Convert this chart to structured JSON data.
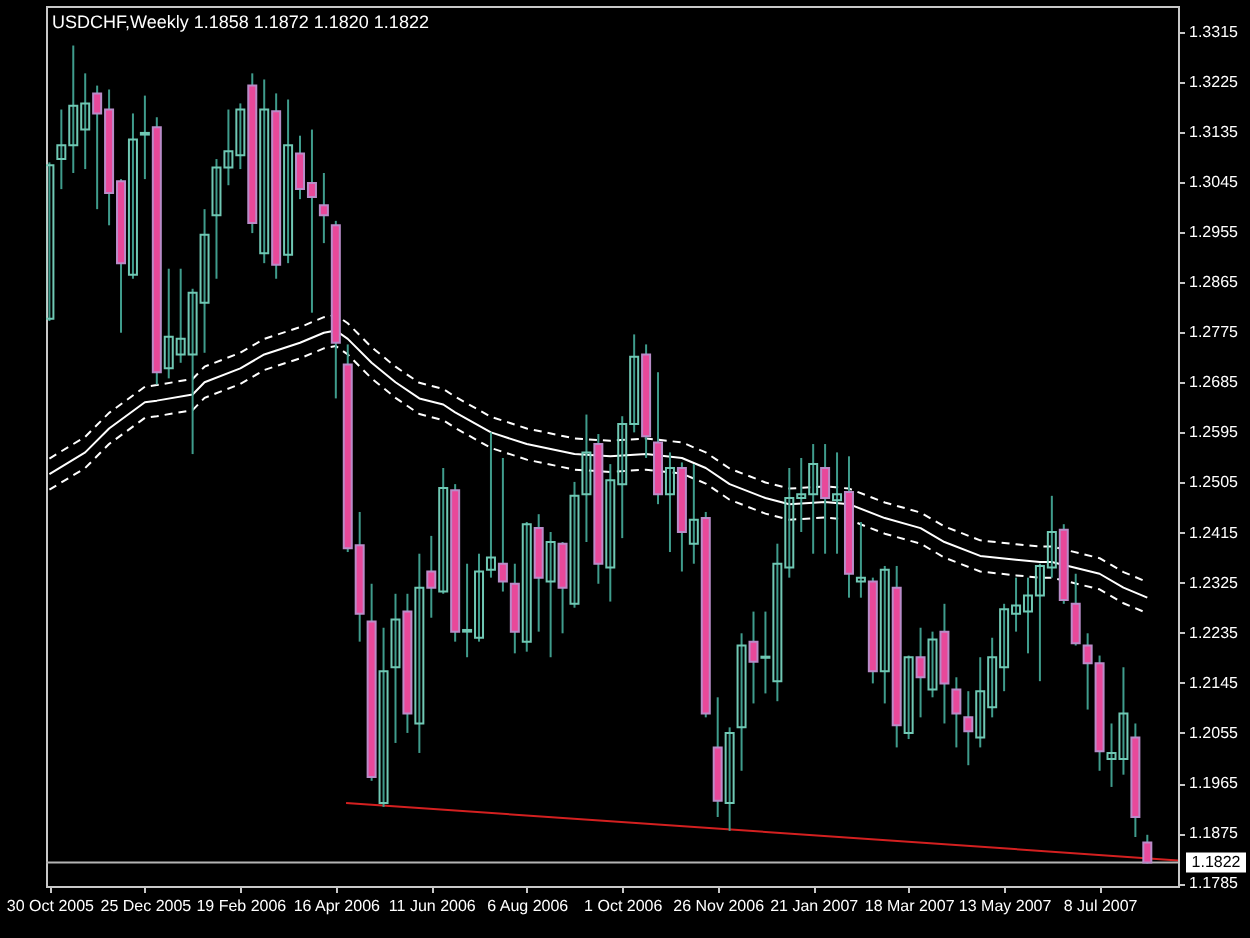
{
  "chart_data": {
    "type": "candlestick",
    "title": "USDCHF,Weekly 1.1858 1.1872 1.1820 1.1822",
    "x": [
      "2005-10-30",
      "2005-11-06",
      "2005-11-13",
      "2005-11-20",
      "2005-11-27",
      "2005-12-04",
      "2005-12-11",
      "2005-12-18",
      "2005-12-25",
      "2006-01-01",
      "2006-01-08",
      "2006-01-15",
      "2006-01-22",
      "2006-01-29",
      "2006-02-05",
      "2006-02-12",
      "2006-02-19",
      "2006-02-26",
      "2006-03-05",
      "2006-03-12",
      "2006-03-19",
      "2006-03-26",
      "2006-04-02",
      "2006-04-09",
      "2006-04-16",
      "2006-04-23",
      "2006-04-30",
      "2006-05-07",
      "2006-05-14",
      "2006-05-21",
      "2006-05-28",
      "2006-06-04",
      "2006-06-11",
      "2006-06-18",
      "2006-06-25",
      "2006-07-02",
      "2006-07-09",
      "2006-07-16",
      "2006-07-23",
      "2006-07-30",
      "2006-08-06",
      "2006-08-13",
      "2006-08-20",
      "2006-08-27",
      "2006-09-03",
      "2006-09-10",
      "2006-09-17",
      "2006-09-24",
      "2006-10-01",
      "2006-10-08",
      "2006-10-15",
      "2006-10-22",
      "2006-10-29",
      "2006-11-05",
      "2006-11-12",
      "2006-11-19",
      "2006-11-26",
      "2006-12-03",
      "2006-12-10",
      "2006-12-17",
      "2006-12-24",
      "2006-12-31",
      "2007-01-07",
      "2007-01-14",
      "2007-01-21",
      "2007-01-28",
      "2007-02-04",
      "2007-02-11",
      "2007-02-18",
      "2007-02-25",
      "2007-03-04",
      "2007-03-11",
      "2007-03-18",
      "2007-03-25",
      "2007-04-01",
      "2007-04-08",
      "2007-04-15",
      "2007-04-22",
      "2007-04-29",
      "2007-05-06",
      "2007-05-13",
      "2007-05-20",
      "2007-05-27",
      "2007-06-03",
      "2007-06-10",
      "2007-06-17",
      "2007-06-24",
      "2007-07-01",
      "2007-07-08",
      "2007-07-15",
      "2007-07-22",
      "2007-07-29",
      "2007-08-05"
    ],
    "ohlc": [
      [
        1.2799,
        1.308,
        1.2795,
        1.3075
      ],
      [
        1.3086,
        1.3175,
        1.3032,
        1.3111
      ],
      [
        1.3111,
        1.329,
        1.3061,
        1.3182
      ],
      [
        1.3139,
        1.324,
        1.3068,
        1.3186
      ],
      [
        1.3204,
        1.3218,
        1.2996,
        1.3168
      ],
      [
        1.3175,
        1.3211,
        1.2967,
        1.3025
      ],
      [
        1.3046,
        1.305,
        1.2774,
        1.2899
      ],
      [
        1.2878,
        1.3168,
        1.2871,
        1.3121
      ],
      [
        1.313,
        1.32,
        1.305,
        1.3133
      ],
      [
        1.3143,
        1.3161,
        1.2681,
        1.2703
      ],
      [
        1.271,
        1.2889,
        1.2692,
        1.2767
      ],
      [
        1.2735,
        1.2889,
        1.272,
        1.2763
      ],
      [
        1.2735,
        1.2853,
        1.2556,
        1.2846
      ],
      [
        1.2828,
        1.2996,
        1.2738,
        1.295
      ],
      [
        1.2985,
        1.3086,
        1.2871,
        1.3071
      ],
      [
        1.3071,
        1.3175,
        1.3039,
        1.31
      ],
      [
        1.3093,
        1.3186,
        1.3068,
        1.3175
      ],
      [
        1.3218,
        1.324,
        1.2953,
        1.2971
      ],
      [
        1.2917,
        1.3229,
        1.2899,
        1.3175
      ],
      [
        1.3172,
        1.3204,
        1.2871,
        1.2896
      ],
      [
        1.2914,
        1.3193,
        1.2899,
        1.3111
      ],
      [
        1.3096,
        1.3128,
        1.3014,
        1.3032
      ],
      [
        1.3043,
        1.3139,
        1.281,
        1.3018
      ],
      [
        1.3003,
        1.3061,
        1.2935,
        1.2985
      ],
      [
        1.2967,
        1.2975,
        1.2656,
        1.2756
      ],
      [
        1.2717,
        1.2753,
        1.238,
        1.2387
      ],
      [
        1.2392,
        1.2452,
        1.2219,
        1.2269
      ],
      [
        1.2255,
        1.2323,
        1.1969,
        1.1976
      ],
      [
        1.1929,
        1.2244,
        1.1922,
        1.2166
      ],
      [
        1.2173,
        1.2305,
        1.2037,
        1.2259
      ],
      [
        1.2273,
        1.2305,
        1.2055,
        1.209
      ],
      [
        1.2072,
        1.2377,
        1.2019,
        1.2316
      ],
      [
        1.2345,
        1.2409,
        1.2262,
        1.2316
      ],
      [
        1.2309,
        1.2531,
        1.2305,
        1.2495
      ],
      [
        1.2491,
        1.2502,
        1.2219,
        1.2237
      ],
      [
        1.2237,
        1.2359,
        1.2191,
        1.224
      ],
      [
        1.2226,
        1.2377,
        1.2219,
        1.2345
      ],
      [
        1.2348,
        1.2595,
        1.2334,
        1.237
      ],
      [
        1.2359,
        1.2549,
        1.2309,
        1.2327
      ],
      [
        1.2323,
        1.2359,
        1.2198,
        1.2237
      ],
      [
        1.2219,
        1.2434,
        1.2201,
        1.243
      ],
      [
        1.2423,
        1.2448,
        1.2237,
        1.2334
      ],
      [
        1.2327,
        1.2416,
        1.2191,
        1.2398
      ],
      [
        1.2395,
        1.2398,
        1.2234,
        1.2316
      ],
      [
        1.2287,
        1.2506,
        1.228,
        1.2481
      ],
      [
        1.2484,
        1.2627,
        1.2398,
        1.2559
      ],
      [
        1.2574,
        1.2592,
        1.2323,
        1.2359
      ],
      [
        1.2352,
        1.2538,
        1.2291,
        1.2509
      ],
      [
        1.2502,
        1.2624,
        1.2405,
        1.261
      ],
      [
        1.261,
        1.2771,
        1.2595,
        1.2731
      ],
      [
        1.2735,
        1.2753,
        1.2549,
        1.2588
      ],
      [
        1.2577,
        1.2703,
        1.2466,
        1.2484
      ],
      [
        1.2484,
        1.2559,
        1.238,
        1.2531
      ],
      [
        1.2531,
        1.2541,
        1.2345,
        1.2416
      ],
      [
        1.2395,
        1.2538,
        1.2359,
        1.2438
      ],
      [
        1.2441,
        1.2452,
        1.2083,
        1.209
      ],
      [
        1.2029,
        1.2119,
        1.1904,
        1.1933
      ],
      [
        1.1929,
        1.2065,
        1.1879,
        1.2055
      ],
      [
        1.2065,
        1.2234,
        1.1987,
        1.2212
      ],
      [
        1.2219,
        1.2273,
        1.2108,
        1.2183
      ],
      [
        1.219,
        1.2273,
        1.2126,
        1.2192
      ],
      [
        1.2148,
        1.2395,
        1.2112,
        1.2359
      ],
      [
        1.2352,
        1.2531,
        1.2334,
        1.2477
      ],
      [
        1.2477,
        1.2549,
        1.2416,
        1.2484
      ],
      [
        1.2484,
        1.2574,
        1.2377,
        1.2538
      ],
      [
        1.2531,
        1.2574,
        1.2377,
        1.2477
      ],
      [
        1.2473,
        1.2559,
        1.2377,
        1.2484
      ],
      [
        1.2488,
        1.2552,
        1.2298,
        1.2341
      ],
      [
        1.2327,
        1.2434,
        1.2298,
        1.2334
      ],
      [
        1.2327,
        1.2334,
        1.2144,
        1.2166
      ],
      [
        1.2166,
        1.2355,
        1.2108,
        1.2348
      ],
      [
        1.2316,
        1.2355,
        1.2029,
        1.2069
      ],
      [
        1.2055,
        1.2194,
        1.2044,
        1.2191
      ],
      [
        1.2191,
        1.2244,
        1.2083,
        1.2155
      ],
      [
        1.2133,
        1.2237,
        1.2119,
        1.2223
      ],
      [
        1.2237,
        1.2287,
        1.2072,
        1.2144
      ],
      [
        1.2133,
        1.2155,
        1.2029,
        1.209
      ],
      [
        1.2083,
        1.213,
        1.1997,
        1.2058
      ],
      [
        1.2047,
        1.2191,
        1.2029,
        1.213
      ],
      [
        1.2101,
        1.2226,
        1.2083,
        1.2191
      ],
      [
        1.2173,
        1.2287,
        1.213,
        1.2277
      ],
      [
        1.2269,
        1.2334,
        1.2237,
        1.2284
      ],
      [
        1.2273,
        1.2334,
        1.2198,
        1.2302
      ],
      [
        1.2302,
        1.2359,
        1.2148,
        1.2355
      ],
      [
        1.2352,
        1.2481,
        1.2334,
        1.2416
      ],
      [
        1.242,
        1.243,
        1.2287,
        1.2294
      ],
      [
        1.2287,
        1.2341,
        1.2212,
        1.2216
      ],
      [
        1.2212,
        1.2234,
        1.2097,
        1.218
      ],
      [
        1.218,
        1.2194,
        1.1987,
        1.2022
      ],
      [
        1.2008,
        1.2072,
        1.1958,
        1.2019
      ],
      [
        1.2008,
        1.2173,
        1.198,
        1.209
      ],
      [
        1.2047,
        1.2072,
        1.1868,
        1.1904
      ],
      [
        1.1858,
        1.1872,
        1.182,
        1.1822
      ]
    ],
    "series": [
      {
        "type": "line",
        "color": "#ffffff",
        "x": [
          "2005-10-30",
          "2005-11-20",
          "2005-12-04",
          "2005-12-25",
          "2006-01-01",
          "2006-01-22",
          "2006-01-29",
          "2006-02-19",
          "2006-03-05",
          "2006-03-26",
          "2006-04-09",
          "2006-04-16",
          "2006-04-23",
          "2006-05-07",
          "2006-05-21",
          "2006-06-04",
          "2006-06-18",
          "2006-06-25",
          "2006-07-16",
          "2006-08-06",
          "2006-09-03",
          "2006-09-24",
          "2006-10-15",
          "2006-11-05",
          "2006-11-19",
          "2006-12-03",
          "2006-12-24",
          "2007-01-07",
          "2007-01-28",
          "2007-02-11",
          "2007-03-04",
          "2007-03-25",
          "2007-04-08",
          "2007-04-29",
          "2007-05-20",
          "2007-06-03",
          "2007-06-10",
          "2007-07-08",
          "2007-07-22",
          "2007-08-05"
        ],
        "values": [
          1.252,
          1.2559,
          1.2602,
          1.2649,
          1.2652,
          1.2663,
          1.2685,
          1.271,
          1.2735,
          1.2756,
          1.2774,
          1.2778,
          1.2763,
          1.272,
          1.2685,
          1.2656,
          1.2645,
          1.2631,
          1.2595,
          1.2574,
          1.2556,
          1.2552,
          1.2556,
          1.2549,
          1.2531,
          1.2502,
          1.2477,
          1.2466,
          1.247,
          1.2466,
          1.2441,
          1.2423,
          1.2398,
          1.2373,
          1.2366,
          1.2362,
          1.2362,
          1.2341,
          1.2316,
          1.2298
        ]
      },
      {
        "type": "line",
        "color": "#ffffff",
        "line_style": "dashed",
        "x": [
          "2005-10-30",
          "2005-11-20",
          "2005-12-04",
          "2005-12-25",
          "2006-01-01",
          "2006-01-22",
          "2006-01-29",
          "2006-02-19",
          "2006-03-05",
          "2006-03-26",
          "2006-04-09",
          "2006-04-16",
          "2006-04-23",
          "2006-05-07",
          "2006-05-21",
          "2006-06-04",
          "2006-06-18",
          "2006-06-25",
          "2006-07-16",
          "2006-08-06",
          "2006-09-03",
          "2006-09-24",
          "2006-10-15",
          "2006-11-05",
          "2006-11-19",
          "2006-12-03",
          "2006-12-24",
          "2007-01-07",
          "2007-01-28",
          "2007-02-11",
          "2007-03-04",
          "2007-03-25",
          "2007-04-08",
          "2007-04-29",
          "2007-05-20",
          "2007-06-03",
          "2007-06-10",
          "2007-07-08",
          "2007-07-22",
          "2007-08-05"
        ],
        "values": [
          1.2548,
          1.2587,
          1.263,
          1.2677,
          1.268,
          1.2691,
          1.2713,
          1.2738,
          1.2763,
          1.2784,
          1.2802,
          1.2806,
          1.2791,
          1.2748,
          1.2713,
          1.2684,
          1.2673,
          1.2659,
          1.2623,
          1.2602,
          1.2584,
          1.258,
          1.2584,
          1.2577,
          1.2559,
          1.253,
          1.2505,
          1.2494,
          1.2498,
          1.2494,
          1.2469,
          1.2451,
          1.2426,
          1.2401,
          1.2394,
          1.239,
          1.239,
          1.2369,
          1.2344,
          1.2326
        ]
      },
      {
        "type": "line",
        "color": "#ffffff",
        "line_style": "dashed",
        "x": [
          "2005-10-30",
          "2005-11-20",
          "2005-12-04",
          "2005-12-25",
          "2006-01-01",
          "2006-01-22",
          "2006-01-29",
          "2006-02-19",
          "2006-03-05",
          "2006-03-26",
          "2006-04-09",
          "2006-04-16",
          "2006-04-23",
          "2006-05-07",
          "2006-05-21",
          "2006-06-04",
          "2006-06-18",
          "2006-06-25",
          "2006-07-16",
          "2006-08-06",
          "2006-09-03",
          "2006-09-24",
          "2006-10-15",
          "2006-11-05",
          "2006-11-19",
          "2006-12-03",
          "2006-12-24",
          "2007-01-07",
          "2007-01-28",
          "2007-02-11",
          "2007-03-04",
          "2007-03-25",
          "2007-04-08",
          "2007-04-29",
          "2007-05-20",
          "2007-06-03",
          "2007-06-10",
          "2007-07-08",
          "2007-07-22",
          "2007-08-05"
        ],
        "values": [
          1.2492,
          1.2531,
          1.2574,
          1.2621,
          1.2624,
          1.2635,
          1.2657,
          1.2682,
          1.2707,
          1.2728,
          1.2746,
          1.275,
          1.2735,
          1.2692,
          1.2657,
          1.2628,
          1.2617,
          1.2603,
          1.2567,
          1.2546,
          1.2528,
          1.2524,
          1.2528,
          1.2521,
          1.2503,
          1.2474,
          1.2449,
          1.2438,
          1.2442,
          1.2438,
          1.2413,
          1.2395,
          1.237,
          1.2345,
          1.2338,
          1.2334,
          1.2334,
          1.2313,
          1.2288,
          1.227
        ]
      },
      {
        "type": "line",
        "color": "#d42020",
        "x": [
          "2006-04-22",
          "2007-08-23"
        ],
        "values": [
          1.1929,
          1.1826
        ]
      }
    ],
    "ref_lines": [
      {
        "axis": "y",
        "value": 1.1822,
        "label": "1.1822",
        "color": "#b4b4b4"
      }
    ],
    "xlim": [
      "2005-10-28",
      "2007-08-23"
    ],
    "xticks": [
      {
        "value": "2005-10-30",
        "label": "30 Oct 2005"
      },
      {
        "value": "2005-12-25",
        "label": "25 Dec 2005"
      },
      {
        "value": "2006-02-19",
        "label": "19 Feb 2006"
      },
      {
        "value": "2006-04-16",
        "label": "16 Apr 2006"
      },
      {
        "value": "2006-06-11",
        "label": "11 Jun 2006"
      },
      {
        "value": "2006-08-06",
        "label": "6 Aug 2006"
      },
      {
        "value": "2006-10-01",
        "label": "1 Oct 2006"
      },
      {
        "value": "2006-11-26",
        "label": "26 Nov 2006"
      },
      {
        "value": "2007-01-21",
        "label": "21 Jan 2007"
      },
      {
        "value": "2007-03-18",
        "label": "18 Mar 2007"
      },
      {
        "value": "2007-05-13",
        "label": "13 May 2007"
      },
      {
        "value": "2007-07-08",
        "label": "8 Jul 2007"
      }
    ],
    "ylim": [
      1.178,
      1.3361
    ],
    "yticks": [
      1.1785,
      1.1875,
      1.1965,
      1.2055,
      1.2145,
      1.2235,
      1.2325,
      1.2415,
      1.2505,
      1.2595,
      1.2685,
      1.2775,
      1.2865,
      1.2955,
      1.3045,
      1.3135,
      1.3225,
      1.3315
    ]
  }
}
